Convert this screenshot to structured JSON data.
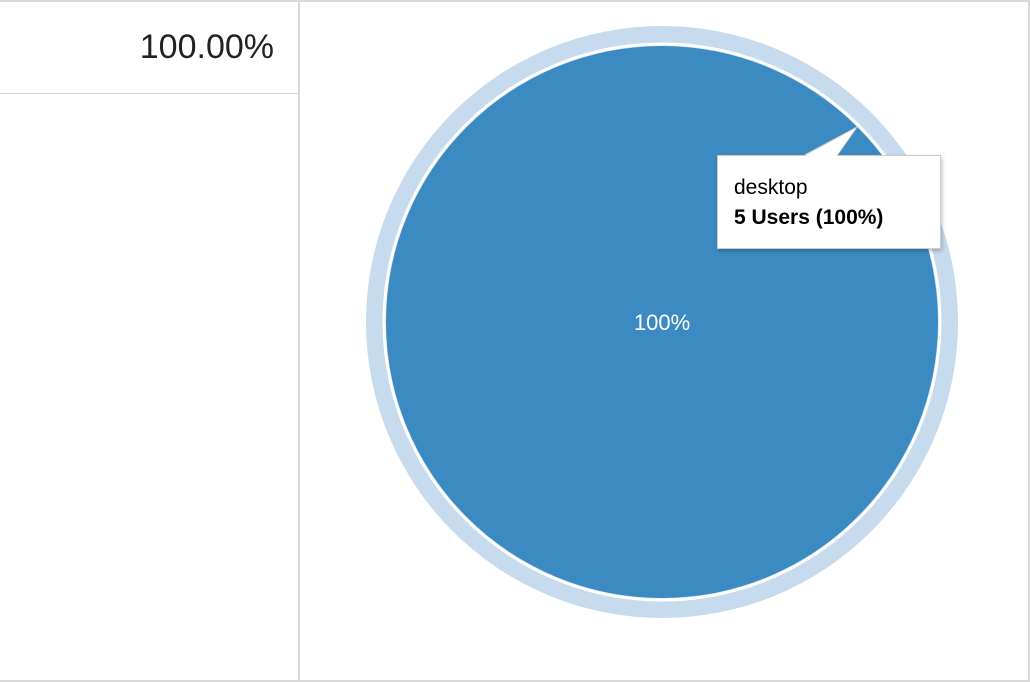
{
  "table": {
    "percent_cell": "100.00%"
  },
  "chart_data": {
    "type": "pie",
    "categories": [
      "desktop"
    ],
    "values": [
      5
    ],
    "slice_labels": [
      "100%"
    ],
    "colors": {
      "slice": "#3b8bc2",
      "ring": "#c6dbee",
      "separator": "#ffffff"
    }
  },
  "tooltip": {
    "title": "desktop",
    "value": "5 Users (100%)"
  }
}
